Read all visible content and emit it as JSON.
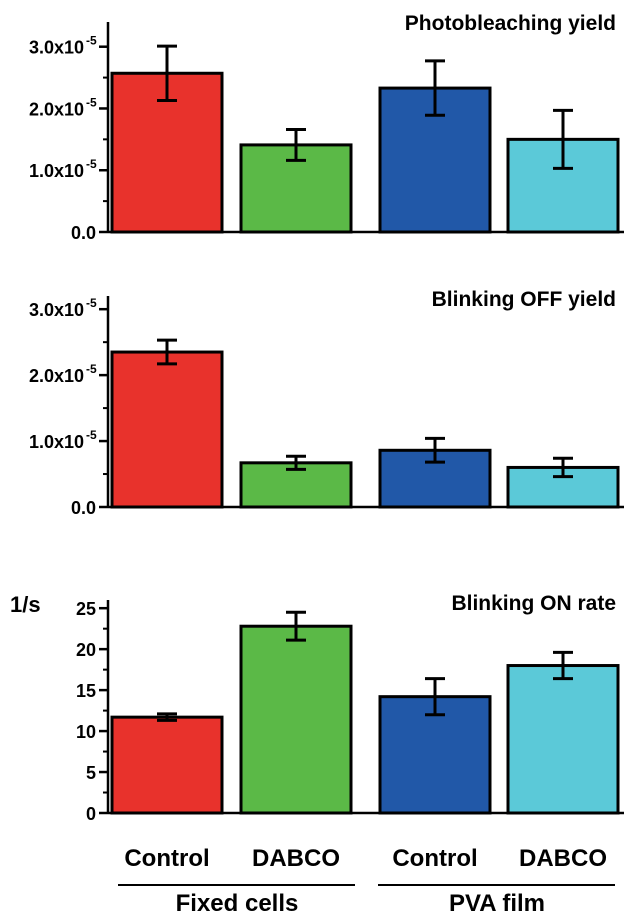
{
  "chart_data": [
    {
      "type": "bar",
      "title": "Photobleaching yield",
      "categories": [
        "Fixed cells Control",
        "Fixed cells DABCO",
        "PVA film Control",
        "PVA film DABCO"
      ],
      "values": [
        2.57e-05,
        1.41e-05,
        2.33e-05,
        1.5e-05
      ],
      "errors": [
        4.4e-06,
        2.5e-06,
        4.4e-06,
        4.7e-06
      ],
      "ylim": [
        0,
        3.4e-05
      ],
      "yticks": [
        "0.0",
        "1.0x10",
        "2.0x10",
        "3.0x10"
      ],
      "ytick_exponent": "-5",
      "ylabel": "",
      "xlabel": ""
    },
    {
      "type": "bar",
      "title": "Blinking OFF yield",
      "categories": [
        "Fixed cells Control",
        "Fixed cells DABCO",
        "PVA film Control",
        "PVA film DABCO"
      ],
      "values": [
        2.35e-05,
        6.7e-06,
        8.6e-06,
        6e-06
      ],
      "errors": [
        1.8e-06,
        1e-06,
        1.8e-06,
        1.4e-06
      ],
      "ylim": [
        0,
        3.2e-05
      ],
      "yticks": [
        "0.0",
        "1.0x10",
        "2.0x10",
        "3.0x10"
      ],
      "ytick_exponent": "-5",
      "ylabel": "",
      "xlabel": ""
    },
    {
      "type": "bar",
      "title": "Blinking ON rate",
      "categories": [
        "Fixed cells Control",
        "Fixed cells DABCO",
        "PVA film Control",
        "PVA film DABCO"
      ],
      "values": [
        11.7,
        22.8,
        14.2,
        18.0
      ],
      "errors": [
        0.4,
        1.7,
        2.2,
        1.6
      ],
      "ylim": [
        0,
        26
      ],
      "yticks": [
        "0",
        "5",
        "10",
        "15",
        "20",
        "25"
      ],
      "ylabel": "1/s",
      "xlabel": ""
    }
  ],
  "colors": [
    "#e8322c",
    "#5bb947",
    "#2158a8",
    "#5bc9d8"
  ],
  "x_axis": {
    "tick_labels": [
      "Control",
      "DABCO",
      "Control",
      "DABCO"
    ],
    "groups": [
      "Fixed cells",
      "PVA film"
    ]
  }
}
